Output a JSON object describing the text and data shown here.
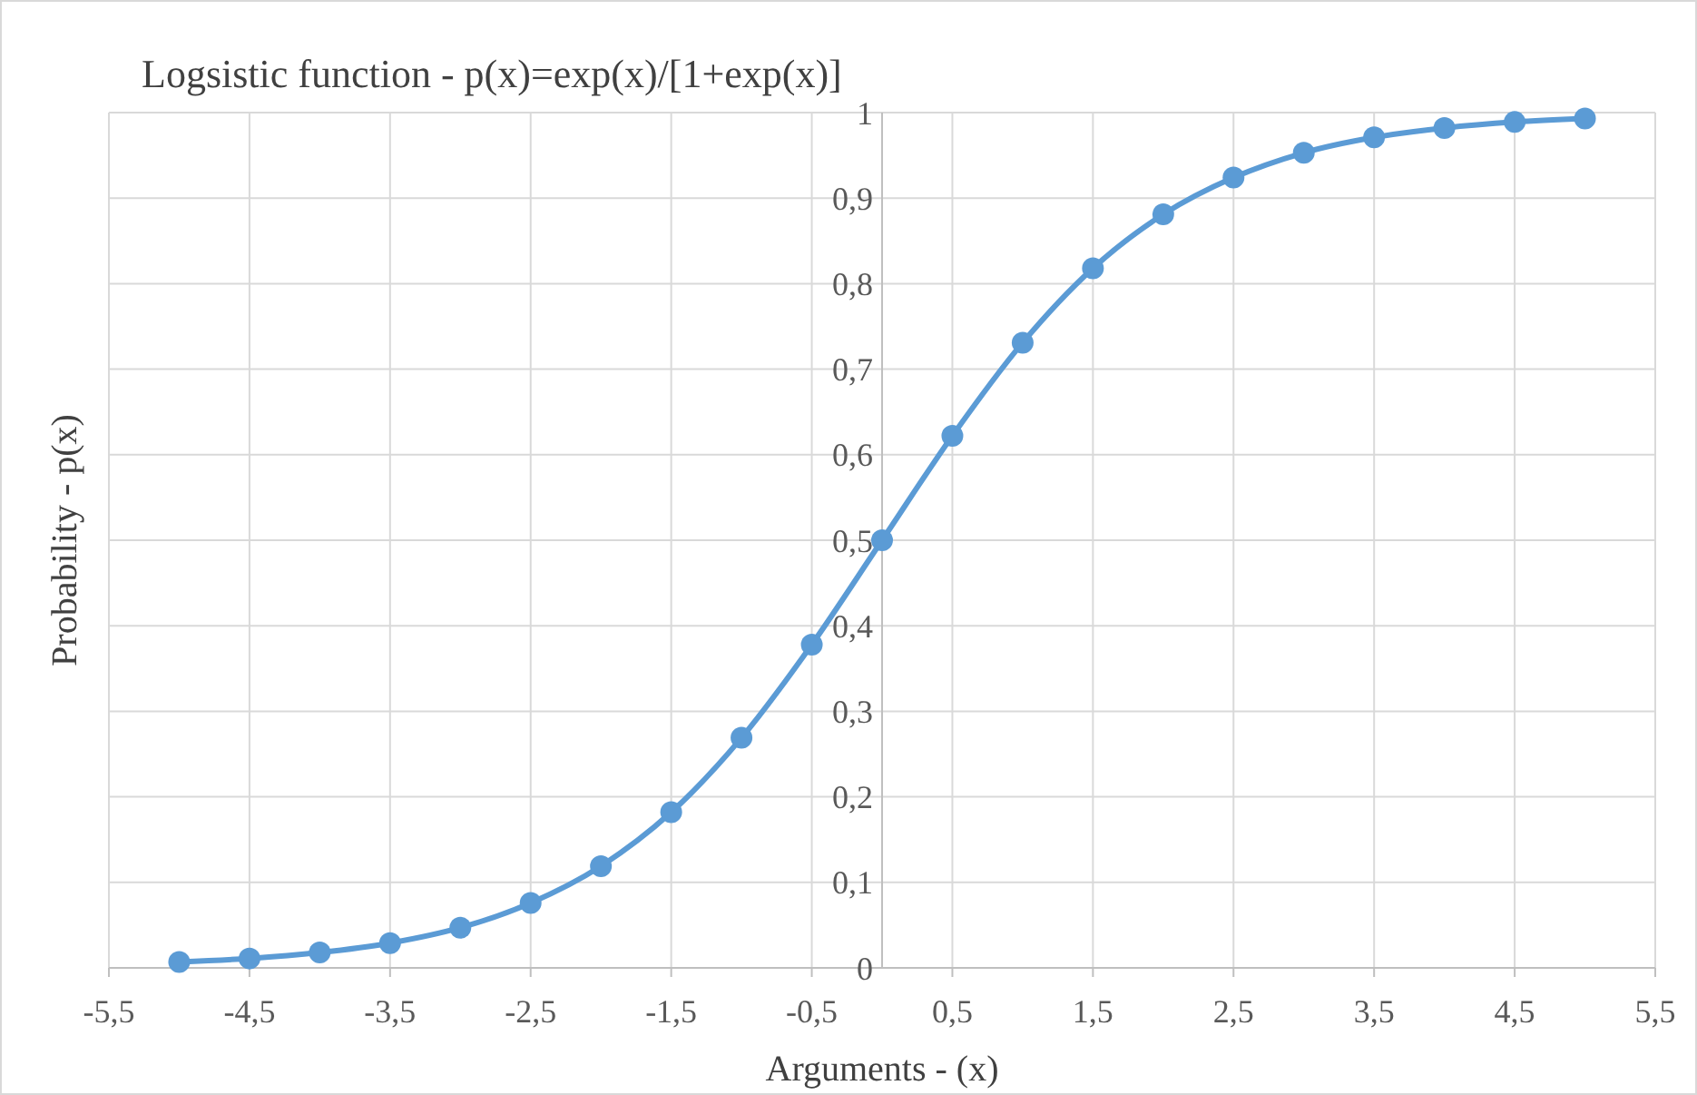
{
  "chart_data": {
    "type": "line",
    "title": "Logsistic function - p(x)=exp(x)/[1+exp(x)]",
    "xlabel": "Arguments - (x)",
    "ylabel": "Probability - p(x)",
    "x": [
      -5,
      -4.5,
      -4,
      -3.5,
      -3,
      -2.5,
      -2,
      -1.5,
      -1,
      -0.5,
      0,
      0.5,
      1,
      1.5,
      2,
      2.5,
      3,
      3.5,
      4,
      4.5,
      5
    ],
    "series": [
      {
        "color": "#5b9bd5",
        "values": [
          0.007,
          0.011,
          0.018,
          0.029,
          0.047,
          0.076,
          0.119,
          0.182,
          0.269,
          0.378,
          0.5,
          0.622,
          0.731,
          0.818,
          0.881,
          0.924,
          0.953,
          0.971,
          0.982,
          0.989,
          0.993
        ]
      }
    ],
    "xlim": [
      -5.5,
      5.5
    ],
    "xticks": [
      {
        "value": -5.5,
        "label": "-5,5"
      },
      {
        "value": -4.5,
        "label": "-4,5"
      },
      {
        "value": -3.5,
        "label": "-3,5"
      },
      {
        "value": -2.5,
        "label": "-2,5"
      },
      {
        "value": -1.5,
        "label": "-1,5"
      },
      {
        "value": -0.5,
        "label": "-0,5"
      },
      {
        "value": 0.5,
        "label": "0,5"
      },
      {
        "value": 1.5,
        "label": "1,5"
      },
      {
        "value": 2.5,
        "label": "2,5"
      },
      {
        "value": 3.5,
        "label": "3,5"
      },
      {
        "value": 4.5,
        "label": "4,5"
      },
      {
        "value": 5.5,
        "label": "5,5"
      }
    ],
    "ylim": [
      0,
      1
    ],
    "yticks": [
      0,
      {
        "value": 0.1,
        "label": "0,1"
      },
      {
        "value": 0.2,
        "label": "0,2"
      },
      {
        "value": 0.3,
        "label": "0,3"
      },
      {
        "value": 0.4,
        "label": "0,4"
      },
      {
        "value": 0.5,
        "label": "0,5"
      },
      {
        "value": 0.6,
        "label": "0,6"
      },
      {
        "value": 0.7,
        "label": "0,7"
      },
      {
        "value": 0.8,
        "label": "0,8"
      },
      {
        "value": 0.9,
        "label": "0,9"
      },
      1
    ],
    "grid": true,
    "marker": "circle",
    "line_style": "solid"
  }
}
